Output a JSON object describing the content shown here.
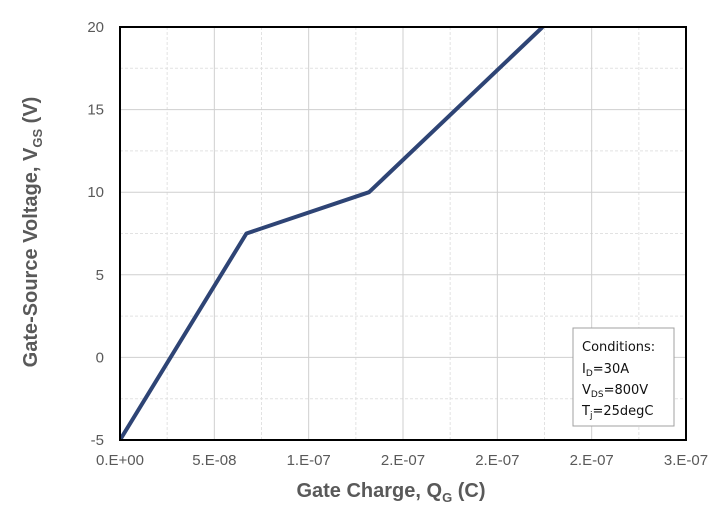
{
  "chart_data": {
    "type": "line",
    "x_axis": {
      "title_main": "Gate Charge, Q",
      "title_sub": "G",
      "title_unit": " (C)",
      "range": [
        0,
        3e-07
      ],
      "tick_values": [
        0,
        5e-08,
        1e-07,
        1.5e-07,
        2e-07,
        2.5e-07,
        3e-07
      ],
      "tick_labels": [
        "0.E+00",
        "5.E-08",
        "1.E-07",
        "2.E-07",
        "2.E-07",
        "2.E-07",
        "3.E-07"
      ]
    },
    "y_axis": {
      "title_main": "Gate-Source Voltage, V",
      "title_sub": "GS",
      "title_unit": " (V)",
      "range": [
        -5,
        20
      ],
      "tick_values": [
        -5,
        0,
        5,
        10,
        15,
        20
      ],
      "tick_labels": [
        "-5",
        "0",
        "5",
        "10",
        "15",
        "20"
      ]
    },
    "grid": true,
    "minor_grid": true,
    "series": [
      {
        "color": "#2e4475",
        "points": [
          {
            "x": 0,
            "y": -5
          },
          {
            "x": 6.7e-08,
            "y": 7.5
          },
          {
            "x": 1.32e-07,
            "y": 10
          },
          {
            "x": 2.24e-07,
            "y": 20
          }
        ]
      }
    ],
    "annotation": {
      "placement": "bottom-right",
      "title": "Conditions:",
      "lines": [
        {
          "main": "I",
          "sub": "D",
          "rest": "=30A"
        },
        {
          "main": "V",
          "sub": "DS",
          "rest": "=800V"
        },
        {
          "main": "T",
          "sub": "j",
          "rest": "=25degC"
        }
      ]
    }
  }
}
